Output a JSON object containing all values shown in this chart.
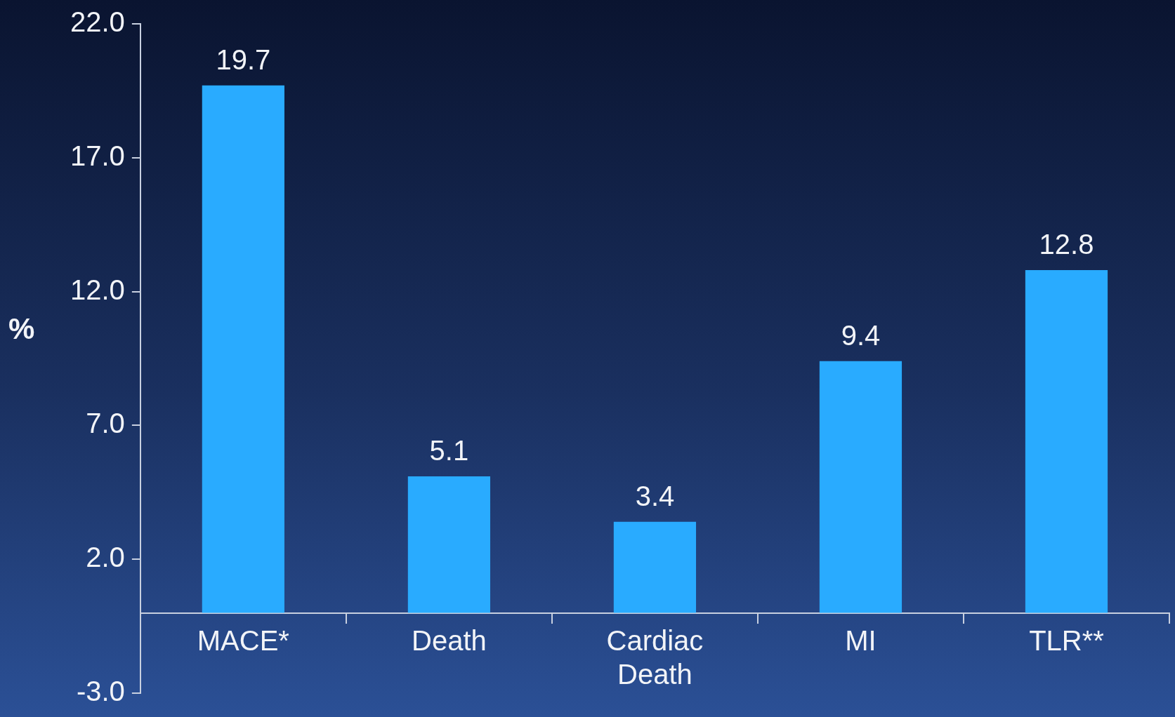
{
  "chart_data": {
    "type": "bar",
    "ylabel": "%",
    "categories": [
      "MACE*",
      "Death",
      "Cardiac Death",
      "MI",
      "TLR**"
    ],
    "values": [
      19.7,
      5.1,
      3.4,
      9.4,
      12.8
    ],
    "color": "#29abff",
    "ylim": [
      -3,
      22
    ],
    "yticks": [
      {
        "value": -3,
        "label": "-3.0"
      },
      {
        "value": 2,
        "label": "2.0"
      },
      {
        "value": 7,
        "label": "7.0"
      },
      {
        "value": 12,
        "label": "12.0"
      },
      {
        "value": 17,
        "label": "17.0"
      },
      {
        "value": 22,
        "label": "22.0"
      }
    ],
    "data_labels": true,
    "grid": false,
    "legend": false
  }
}
